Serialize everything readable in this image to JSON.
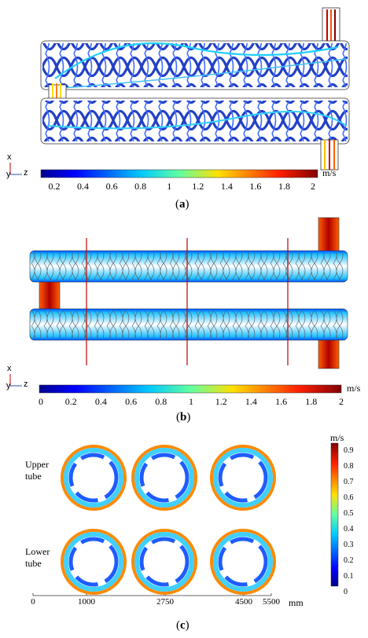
{
  "panel_a": {
    "caption_letter": "a",
    "colorbar_unit": "m/s",
    "colorbar_ticks": [
      "0.2",
      "0.4",
      "0.6",
      "0.8",
      "1",
      "1.2",
      "1.4",
      "1.6",
      "1.8",
      "2"
    ],
    "axis_x": "x",
    "axis_y": "y",
    "axis_z": "z"
  },
  "panel_b": {
    "caption_letter": "b",
    "colorbar_unit": "m/s",
    "colorbar_ticks": [
      "0",
      "0.2",
      "0.4",
      "0.6",
      "0.8",
      "1",
      "1.2",
      "1.4",
      "1.6",
      "1.8",
      "2"
    ],
    "axis_x": "x",
    "axis_y": "y",
    "axis_z": "z"
  },
  "panel_c": {
    "caption_letter": "c",
    "colorbar_unit": "m/s",
    "colorbar_ticks": [
      "0.9",
      "0.8",
      "0.7",
      "0.6",
      "0.5",
      "0.4",
      "0.3",
      "0.2",
      "0.1",
      "0"
    ],
    "upper_label_1": "Upper",
    "upper_label_2": "tube",
    "lower_label_1": "Lower",
    "lower_label_2": "tube",
    "axis_ticks": [
      "0",
      "1000",
      "2750",
      "4500",
      "5500"
    ],
    "axis_unit": "mm"
  },
  "colors": {
    "jet_dark_blue": "#00008f",
    "jet_blue": "#0050ff",
    "jet_cyan": "#20e0ff",
    "jet_yellow": "#ffe000",
    "jet_red": "#d00000",
    "jet_dark_red": "#800000",
    "section_line": "#c00000"
  }
}
